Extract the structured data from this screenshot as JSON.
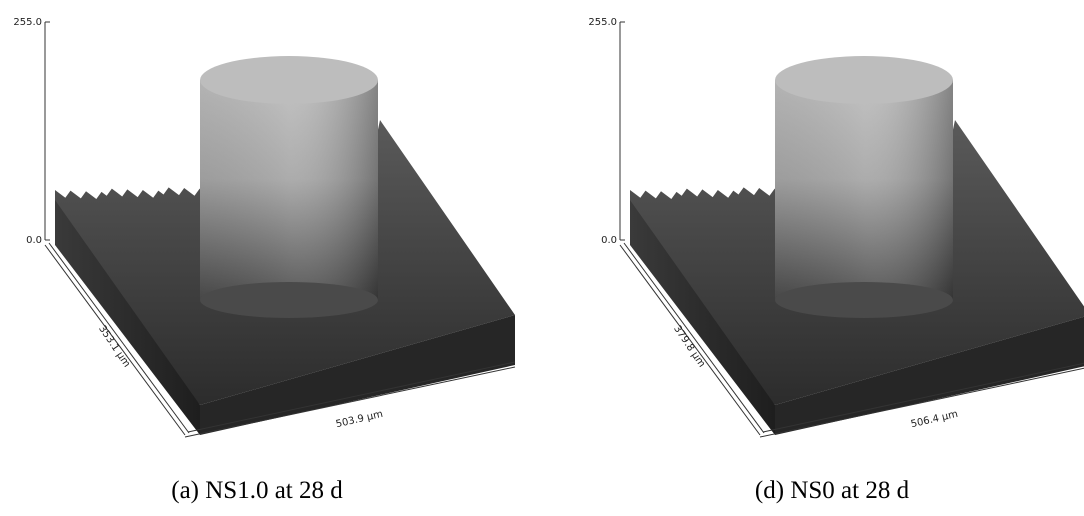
{
  "panels": [
    {
      "z_max": "255.0",
      "z_min": "0.0",
      "y_length": "353.1 µm",
      "x_length": "503.9 µm",
      "caption": "(a) NS1.0 at 28 d"
    },
    {
      "z_max": "255.0",
      "z_min": "0.0",
      "y_length": "379.8 µm",
      "x_length": "506.4 µm",
      "caption": "(d) NS0 at 28 d"
    }
  ]
}
